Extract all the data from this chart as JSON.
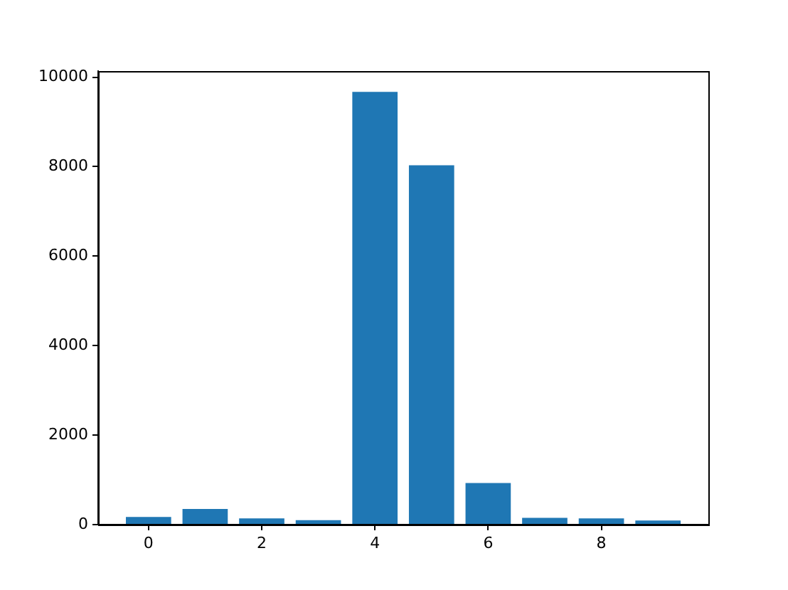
{
  "chart_data": {
    "type": "bar",
    "x": [
      0,
      1,
      2,
      3,
      4,
      5,
      6,
      7,
      8,
      9
    ],
    "values": [
      170,
      350,
      140,
      100,
      9670,
      8030,
      930,
      150,
      140,
      90
    ],
    "color": "#1f77b4",
    "xlim": [
      -0.89,
      9.89
    ],
    "xticks": [
      0,
      2,
      4,
      6,
      8
    ],
    "ylim": [
      0,
      10136
    ],
    "yticks": [
      0,
      2000,
      4000,
      6000,
      8000,
      10000
    ],
    "grid": false,
    "legend": false
  }
}
